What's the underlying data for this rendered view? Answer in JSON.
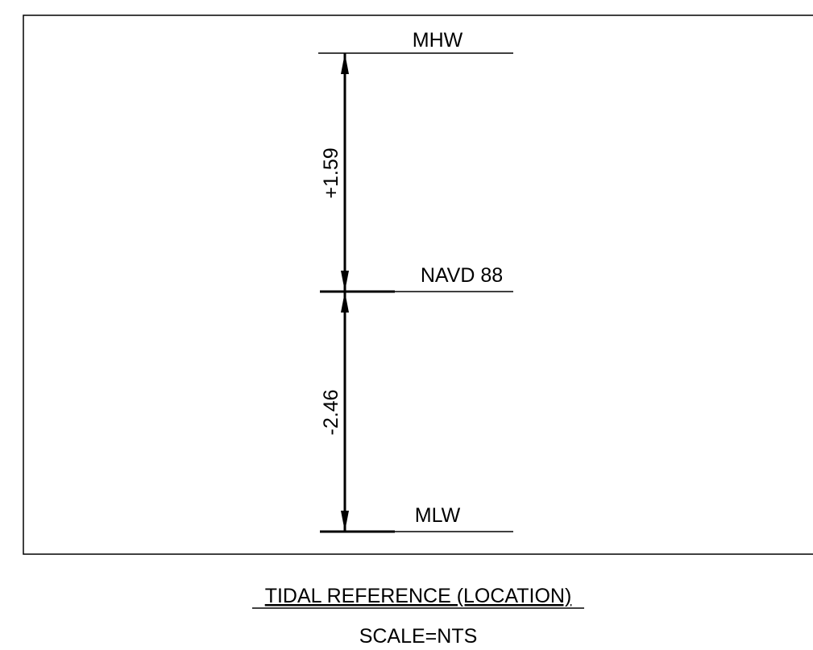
{
  "levels": [
    {
      "label": "MHW"
    },
    {
      "label": "NAVD 88"
    },
    {
      "label": "MLW"
    }
  ],
  "dimensions": [
    {
      "label": "+1.59"
    },
    {
      "label": "-2.46"
    }
  ],
  "title": "TIDAL REFERENCE (LOCATION)",
  "scale": "SCALE=NTS"
}
